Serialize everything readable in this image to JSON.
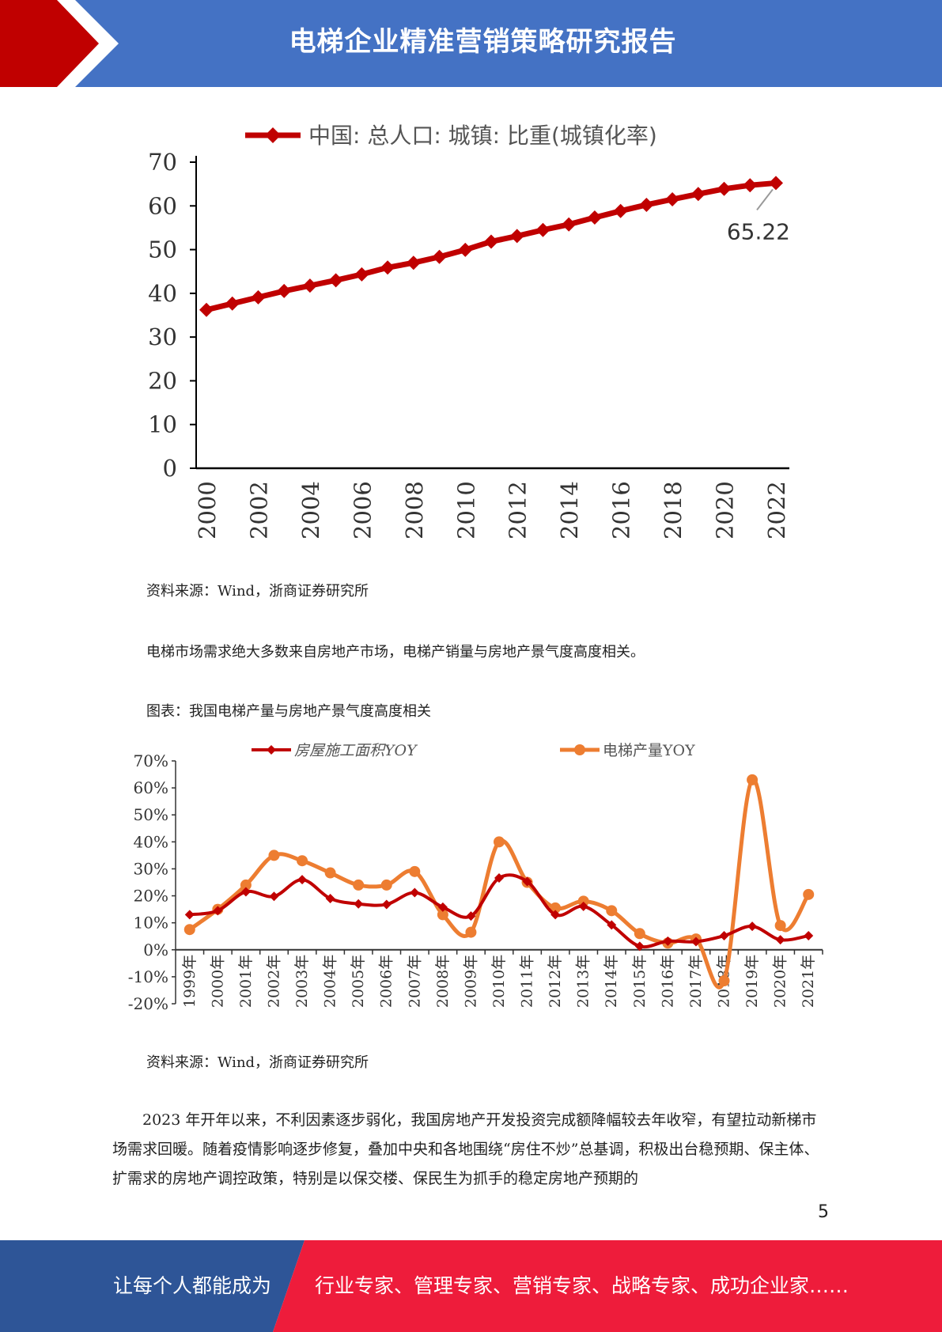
{
  "header": {
    "title": "电梯企业精准营销策略研究报告"
  },
  "chart_data": [
    {
      "type": "line",
      "title": "",
      "xlabel": "",
      "ylabel": "",
      "series": [
        {
          "name": "中国: 总人口: 城镇: 比重(城镇化率)",
          "color": "#c00000",
          "values": [
            36.22,
            37.66,
            39.09,
            40.53,
            41.76,
            42.99,
            44.34,
            45.89,
            46.99,
            48.34,
            49.95,
            51.83,
            53.1,
            54.49,
            55.75,
            57.33,
            58.84,
            60.24,
            61.5,
            62.71,
            63.89,
            64.72,
            65.22
          ]
        }
      ],
      "x": [
        2000,
        2001,
        2002,
        2003,
        2004,
        2005,
        2006,
        2007,
        2008,
        2009,
        2010,
        2011,
        2012,
        2013,
        2014,
        2015,
        2016,
        2017,
        2018,
        2019,
        2020,
        2021,
        2022
      ],
      "x_tick_labels": [
        "2000",
        "2002",
        "2004",
        "2006",
        "2008",
        "2010",
        "2012",
        "2014",
        "2016",
        "2018",
        "2020",
        "2022"
      ],
      "y_tick_labels": [
        "0",
        "10",
        "20",
        "30",
        "40",
        "50",
        "60",
        "70"
      ],
      "ylim": [
        0,
        70
      ],
      "annotation": "65.22",
      "legend_position": "top"
    },
    {
      "type": "line",
      "title": "",
      "xlabel": "",
      "ylabel": "",
      "categories": [
        "1999年",
        "2000年",
        "2001年",
        "2002年",
        "2003年",
        "2004年",
        "2005年",
        "2006年",
        "2007年",
        "2008年",
        "2009年",
        "2010年",
        "2011年",
        "2012年",
        "2013年",
        "2014年",
        "2015年",
        "2016年",
        "2017年",
        "2018年",
        "2019年",
        "2020年",
        "2021年"
      ],
      "series": [
        {
          "name": "房屋施工面积YOY",
          "color": "#c00000",
          "marker": "diamond",
          "values": [
            13,
            14.5,
            21.5,
            19.8,
            26,
            19,
            17,
            16.8,
            21.2,
            15.8,
            12.5,
            26.6,
            25.3,
            13,
            16.1,
            9.2,
            1.3,
            3.2,
            3,
            5.2,
            8.7,
            3.7,
            5.2
          ]
        },
        {
          "name": "电梯产量YOY",
          "color": "#ed7d31",
          "marker": "circle",
          "values": [
            7.5,
            15,
            24,
            35,
            33,
            28.5,
            24,
            24,
            29,
            13,
            6.5,
            40,
            25,
            15.5,
            18,
            14.5,
            6,
            2.5,
            4,
            -11.5,
            63,
            9,
            20.5
          ]
        }
      ],
      "y_tick_labels": [
        "70%",
        "60%",
        "50%",
        "40%",
        "30%",
        "20%",
        "10%",
        "0%",
        "-10%",
        "-20%"
      ],
      "ylim": [
        -20,
        70
      ],
      "legend_position": "top"
    }
  ],
  "captions": {
    "source1": "资料来源：Wind，浙商证券研究所",
    "intro": "电梯市场需求绝大多数来自房地产市场，电梯产销量与房地产景气度高度相关。",
    "fig_title": "图表：我国电梯产量与房地产景气度高度相关",
    "source2": "资料来源：Wind，浙商证券研究所"
  },
  "paragraph": "2023 年开年以来，不利因素逐步弱化，我国房地产开发投资完成额降幅较去年收窄，有望拉动新梯市场需求回暖。随着疫情影响逐步修复，叠加中央和各地围绕“房住不炒”总基调，积极出台稳预期、保主体、扩需求的房地产调控政策，特别是以保交楼、保民生为抓手的稳定房地产预期的",
  "page_number": "5",
  "footer": {
    "left_text": "让每个人都能成为",
    "right_text": "行业专家、管理专家、营销专家、战略专家、成功企业家……",
    "left_color": "#2e5597",
    "right_color": "#ee1c3b"
  }
}
